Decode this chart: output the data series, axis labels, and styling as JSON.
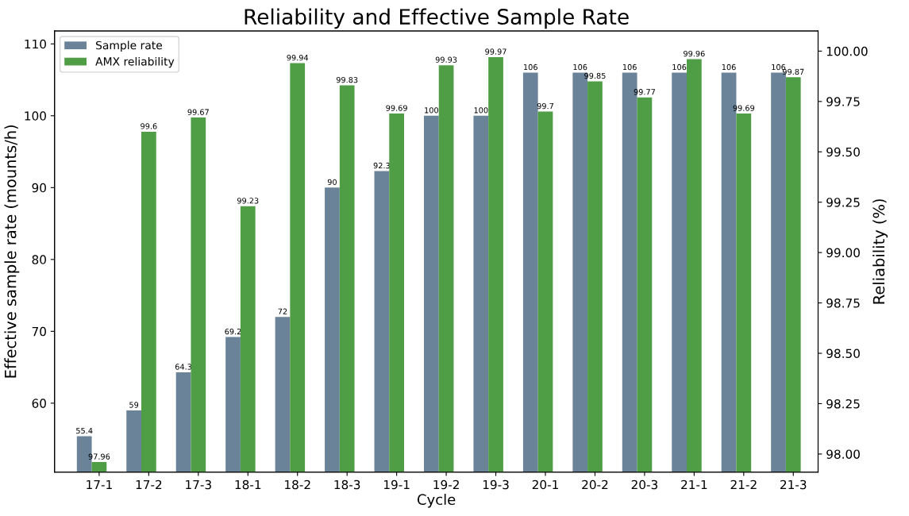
{
  "chart_data": {
    "type": "bar",
    "title": "Reliability and Effective Sample Rate",
    "xlabel": "Cycle",
    "ylabel": "Effective sample rate (mounts/h)",
    "y2label": "Reliability (%)",
    "categories": [
      "17-1",
      "17-2",
      "17-3",
      "18-1",
      "18-2",
      "18-3",
      "19-1",
      "19-2",
      "19-3",
      "20-1",
      "20-2",
      "20-3",
      "21-1",
      "21-2",
      "21-3"
    ],
    "series": [
      {
        "name": "Sample rate",
        "color": "#6a8399",
        "values": [
          55.4,
          59,
          64.3,
          69.2,
          72,
          90,
          92.3,
          100,
          100,
          106,
          106,
          106,
          106,
          106,
          106
        ]
      },
      {
        "name": "AMX reliability",
        "color": "#4f9e45",
        "axis": "y2",
        "values": [
          97.96,
          99.6,
          99.67,
          99.23,
          99.94,
          99.83,
          99.69,
          99.93,
          99.97,
          99.7,
          99.85,
          99.77,
          99.96,
          99.69,
          99.87
        ]
      }
    ],
    "ylim": [
      50.4,
      111.8
    ],
    "yticks": [
      60,
      70,
      80,
      90,
      100,
      110
    ],
    "y2lim": [
      97.91,
      100.1
    ],
    "y2ticks": [
      {
        "value": 98.0,
        "label": "98.00"
      },
      {
        "value": 98.25,
        "label": "98.25"
      },
      {
        "value": 98.5,
        "label": "98.50"
      },
      {
        "value": 98.75,
        "label": "98.75"
      },
      {
        "value": 99.0,
        "label": "99.00"
      },
      {
        "value": 99.25,
        "label": "99.25"
      },
      {
        "value": 99.5,
        "label": "99.50"
      },
      {
        "value": 99.75,
        "label": "99.75"
      },
      {
        "value": 100.0,
        "label": "100.00"
      }
    ],
    "data_labels": true,
    "legend": "top left",
    "grid": false
  }
}
